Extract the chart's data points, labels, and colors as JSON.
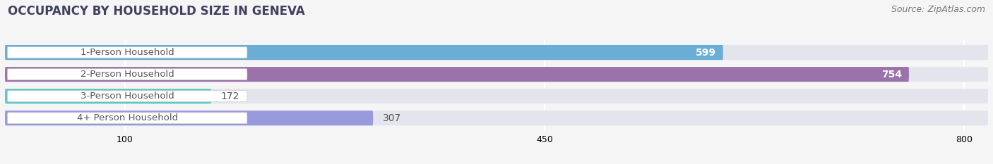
{
  "title": "OCCUPANCY BY HOUSEHOLD SIZE IN GENEVA",
  "source": "Source: ZipAtlas.com",
  "categories": [
    "1-Person Household",
    "2-Person Household",
    "3-Person Household",
    "4+ Person Household"
  ],
  "values": [
    599,
    754,
    172,
    307
  ],
  "bar_colors": [
    "#6aaed6",
    "#9b72aa",
    "#5ec8c8",
    "#9999dd"
  ],
  "value_colors": [
    "white",
    "white",
    "black",
    "black"
  ],
  "xticks": [
    100,
    450,
    800
  ],
  "xlim": [
    0,
    820
  ],
  "title_fontsize": 12,
  "source_fontsize": 9,
  "bar_label_fontsize": 9.5,
  "value_fontsize": 10,
  "bar_height": 0.68,
  "background_color": "#f5f5f5",
  "bar_background_color": "#e4e4ec",
  "label_bg_color": "white",
  "label_text_color": "#555555"
}
